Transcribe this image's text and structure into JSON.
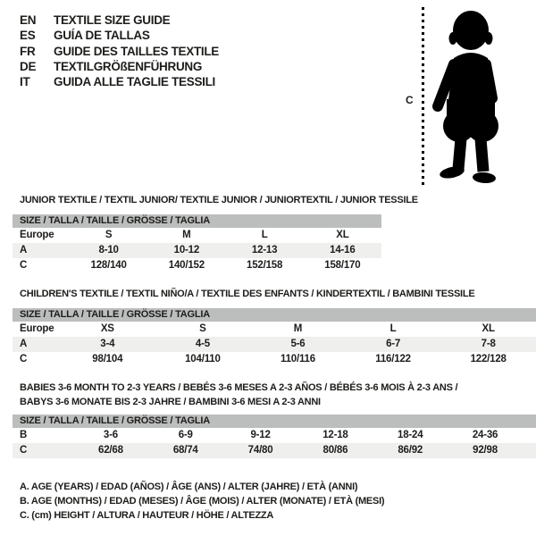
{
  "header": {
    "languages": [
      {
        "code": "EN",
        "label": "TEXTILE SIZE GUIDE"
      },
      {
        "code": "ES",
        "label": "GUÍA DE TALLAS"
      },
      {
        "code": "FR",
        "label": "GUIDE DES TAILLES TEXTILE"
      },
      {
        "code": "DE",
        "label": "TEXTILGRÖßENFÜHRUNG"
      },
      {
        "code": "IT",
        "label": "GUIDA ALLE TAGLIE TESSILI"
      }
    ]
  },
  "figure": {
    "measure_label": "C",
    "silhouette": "standing-toddler-silhouette"
  },
  "tables": [
    {
      "id": "junior",
      "title_lines": [
        "JUNIOR TEXTILE / TEXTIL JUNIOR/ TEXTILE JUNIOR / JUNIORTEXTIL / JUNIOR TESSILE"
      ],
      "size_header": "SIZE / TALLA / TAILLE / GRÖSSE / TAGLIA",
      "rows": [
        {
          "label": "Europe",
          "values": [
            "S",
            "M",
            "L",
            "XL"
          ],
          "shaded": false
        },
        {
          "label": "A",
          "values": [
            "8-10",
            "10-12",
            "12-13",
            "14-16"
          ],
          "shaded": true
        },
        {
          "label": "C",
          "values": [
            "128/140",
            "140/152",
            "152/158",
            "158/170"
          ],
          "shaded": false
        }
      ]
    },
    {
      "id": "children",
      "title_lines": [
        "CHILDREN'S TEXTILE / TEXTIL NIÑO/A / TEXTILE DES ENFANTS / KINDERTEXTIL / BAMBINI TESSILE"
      ],
      "size_header": "SIZE / TALLA / TAILLE / GRÖSSE / TAGLIA",
      "rows": [
        {
          "label": "Europe",
          "values": [
            "XS",
            "S",
            "M",
            "L",
            "XL"
          ],
          "shaded": false
        },
        {
          "label": "A",
          "values": [
            "3-4",
            "4-5",
            "5-6",
            "6-7",
            "7-8"
          ],
          "shaded": true
        },
        {
          "label": "C",
          "values": [
            "98/104",
            "104/110",
            "110/116",
            "116/122",
            "122/128"
          ],
          "shaded": false
        }
      ]
    },
    {
      "id": "babies",
      "title_lines": [
        "BABIES 3-6 MONTH TO 2-3 YEARS / BEBÉS 3-6 MESES A 2-3 AÑOS / BÉBÉS 3-6 MOIS À 2-3 ANS /",
        "BABYS 3-6 MONATE BIS 2-3 JAHRE / BAMBINI 3-6 MESI A 2-3 ANNI"
      ],
      "size_header": "SIZE / TALLA / TAILLE / GRÖSSE / TAGLIA",
      "rows": [
        {
          "label": "B",
          "values": [
            "3-6",
            "6-9",
            "9-12",
            "12-18",
            "18-24",
            "24-36"
          ],
          "shaded": false
        },
        {
          "label": "C",
          "values": [
            "62/68",
            "68/74",
            "74/80",
            "80/86",
            "86/92",
            "92/98"
          ],
          "shaded": true
        }
      ]
    }
  ],
  "legend": {
    "lines": [
      "A. AGE (YEARS) / EDAD (AÑOS) / ÂGE (ANS) / ALTER (JAHRE) / ETÀ (ANNI)",
      "B. AGE (MONTHS) / EDAD (MESES) / ÂGE (MOIS) / ALTER (MONATE) / ETÀ (MESI)",
      "C. (cm) HEIGHT / ALTURA / HAUTEUR / HÖHE / ALTEZZA"
    ]
  },
  "colors": {
    "text": "#1d1d1b",
    "table_header_bg": "#bcbebd",
    "row_shaded_bg": "#efefee",
    "silhouette": "#000000"
  }
}
